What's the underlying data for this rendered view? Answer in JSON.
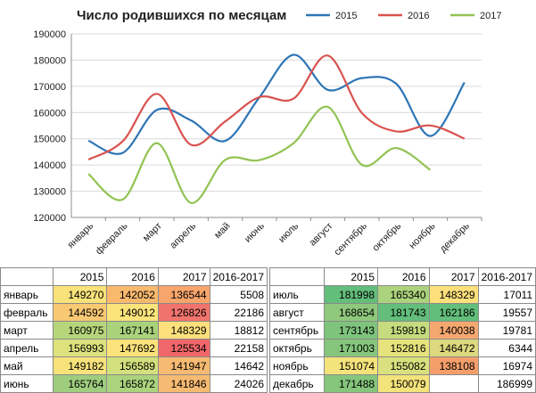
{
  "chart_data": {
    "type": "line",
    "title": "Число родившихся по месяцам",
    "categories": [
      "январь",
      "февраль",
      "март",
      "апрель",
      "май",
      "июнь",
      "июль",
      "август",
      "сентябрь",
      "октябрь",
      "ноябрь",
      "декабрь"
    ],
    "series": [
      {
        "name": "2015",
        "color": "#2e75b6",
        "values": [
          149270,
          144592,
          160975,
          156993,
          149182,
          165764,
          181998,
          168654,
          173143,
          171003,
          151074,
          171488
        ]
      },
      {
        "name": "2016",
        "color": "#d9534f",
        "values": [
          142052,
          149012,
          167141,
          147692,
          156589,
          165872,
          165340,
          181743,
          159819,
          152816,
          155082,
          150079
        ]
      },
      {
        "name": "2017",
        "color": "#92c353",
        "values": [
          136544,
          126826,
          148329,
          125534,
          141947,
          141846,
          148329,
          162186,
          140038,
          146472,
          138108,
          null
        ]
      }
    ],
    "yticks": [
      "120000",
      "130000",
      "140000",
      "150000",
      "160000",
      "170000",
      "180000",
      "190000"
    ],
    "ylim": [
      120000,
      190000
    ],
    "legend_position": "top-right"
  },
  "table": {
    "headers": [
      "",
      "2015",
      "2016",
      "2017",
      "2016-2017"
    ],
    "left_rows": [
      {
        "month": "январь",
        "v2015": "149270",
        "v2016": "142052",
        "v2017": "136544",
        "diff": "5508",
        "c2015": "#f8e27a",
        "c2016": "#f9b96d",
        "c2017": "#f8a56b"
      },
      {
        "month": "февраль",
        "v2015": "144592",
        "v2016": "149012",
        "v2017": "126826",
        "diff": "22186",
        "c2015": "#f8c873",
        "c2016": "#fbe37b",
        "c2017": "#f0746d"
      },
      {
        "month": "март",
        "v2015": "160975",
        "v2016": "167141",
        "v2017": "148329",
        "diff": "18812",
        "c2015": "#b7d67b",
        "c2016": "#a9d27b",
        "c2017": "#fde07b"
      },
      {
        "month": "апрель",
        "v2015": "156993",
        "v2016": "147692",
        "v2017": "125534",
        "diff": "22158",
        "c2015": "#dde27c",
        "c2016": "#fce27b",
        "c2017": "#f0676b"
      },
      {
        "month": "май",
        "v2015": "149182",
        "v2016": "156589",
        "v2017": "141947",
        "diff": "14642",
        "c2015": "#f8e37b",
        "c2016": "#d2e07d",
        "c2017": "#f6ba72"
      },
      {
        "month": "июнь",
        "v2015": "165764",
        "v2016": "165872",
        "v2017": "141846",
        "diff": "24026",
        "c2015": "#9fcd7e",
        "c2016": "#abd27c",
        "c2017": "#f6ba72"
      }
    ],
    "right_rows": [
      {
        "month": "июль",
        "v2015": "181998",
        "v2016": "165340",
        "v2017": "148329",
        "diff": "17011",
        "c2015": "#63be7b",
        "c2016": "#abd27c",
        "c2017": "#fde07b"
      },
      {
        "month": "август",
        "v2015": "168654",
        "v2016": "181743",
        "v2017": "162186",
        "diff": "19557",
        "c2015": "#8fc87c",
        "c2016": "#63be7b",
        "c2017": "#63be7b"
      },
      {
        "month": "сентябрь",
        "v2015": "173143",
        "v2016": "159819",
        "v2017": "140038",
        "diff": "19781",
        "c2015": "#7ec47c",
        "c2016": "#c5db7d",
        "c2017": "#f5a770"
      },
      {
        "month": "октябрь",
        "v2015": "171003",
        "v2016": "152816",
        "v2017": "146472",
        "diff": "6344",
        "c2015": "#85c67c",
        "c2016": "#e6e27c",
        "c2017": "#ddd97e"
      },
      {
        "month": "ноябрь",
        "v2015": "151074",
        "v2016": "155082",
        "v2017": "138108",
        "diff": "16974",
        "c2015": "#f4e27b",
        "c2016": "#d9e07d",
        "c2017": "#f49e6c"
      },
      {
        "month": "декабрь",
        "v2015": "171488",
        "v2016": "150079",
        "v2017": "",
        "diff": "186999",
        "c2015": "#85c67c",
        "c2016": "#f4e27b",
        "c2017": "#ffffff"
      }
    ]
  }
}
